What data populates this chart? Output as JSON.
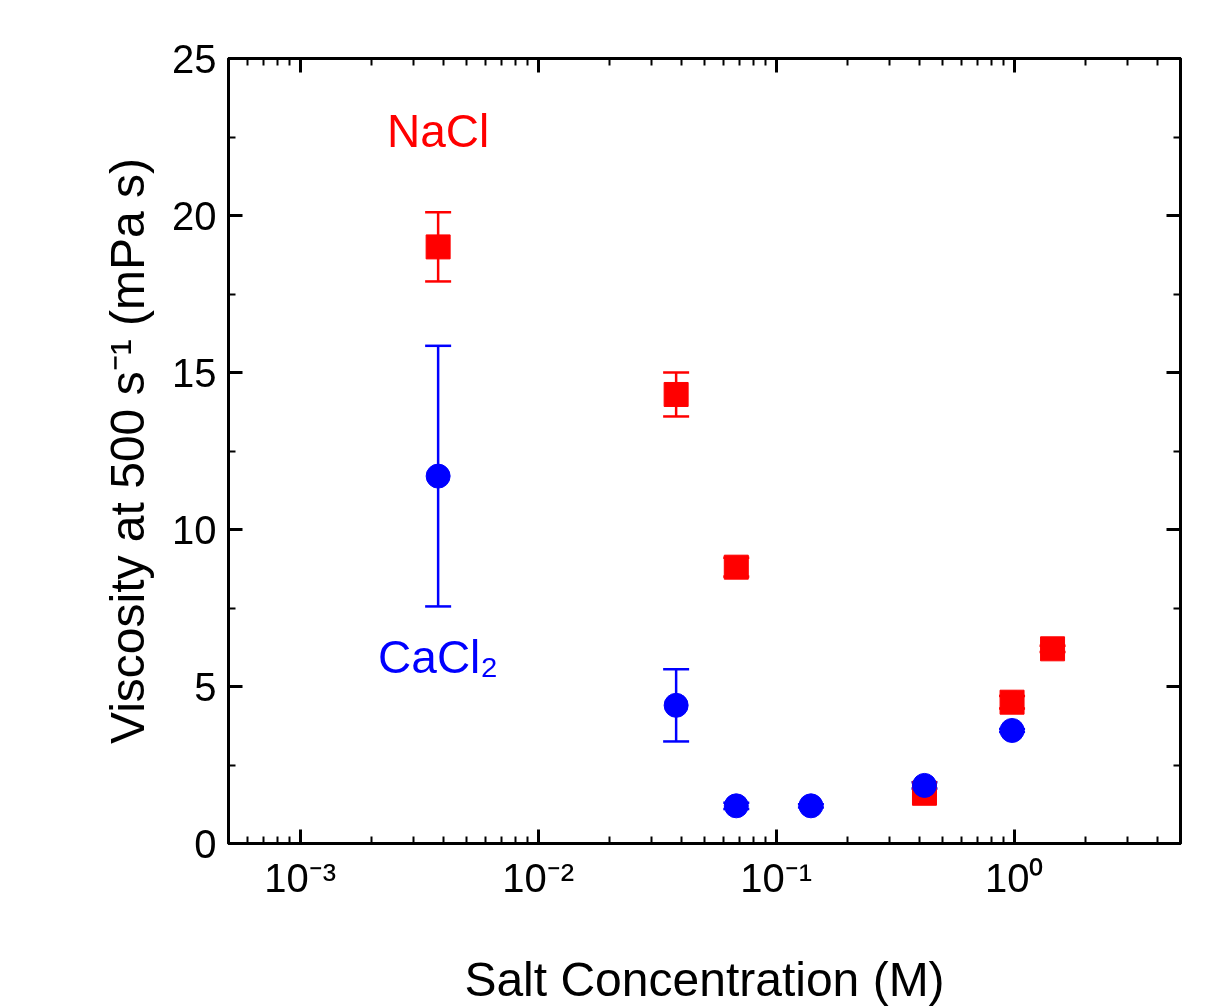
{
  "chart_data": {
    "type": "scatter",
    "xlabel": "Salt Concentration (M)",
    "ylabel": "Viscosity at 500 s⁻¹ (mPa s)",
    "log": "x",
    "grid": false,
    "xlim": [
      0.0005,
      5
    ],
    "ylim": [
      0,
      25
    ],
    "xticks": [
      {
        "value": 0.001,
        "label": "10⁻³"
      },
      {
        "value": 0.01,
        "label": "10⁻²"
      },
      {
        "value": 0.1,
        "label": "10⁻¹"
      },
      {
        "value": 1,
        "label": "10⁰"
      }
    ],
    "yticks": [
      0,
      5,
      10,
      15,
      20,
      25
    ],
    "series": [
      {
        "name": "NaCl",
        "color": "#ff0000",
        "marker": "square",
        "x": [
          0.0038,
          0.038,
          0.068,
          0.42,
          0.98,
          1.45
        ],
        "values": [
          19.0,
          14.3,
          8.8,
          1.6,
          4.5,
          6.2
        ],
        "errors": [
          1.1,
          0.7,
          0.3,
          null,
          0.2,
          0.1
        ]
      },
      {
        "name": "CaCl₂",
        "color": "#0000ff",
        "marker": "circle",
        "x": [
          0.0038,
          0.038,
          0.068,
          0.14,
          0.42,
          0.98
        ],
        "values": [
          11.7,
          4.4,
          1.2,
          1.2,
          1.85,
          3.6
        ],
        "errors": [
          4.15,
          1.15,
          0.1,
          0.05,
          0.1,
          0.05
        ]
      }
    ]
  }
}
